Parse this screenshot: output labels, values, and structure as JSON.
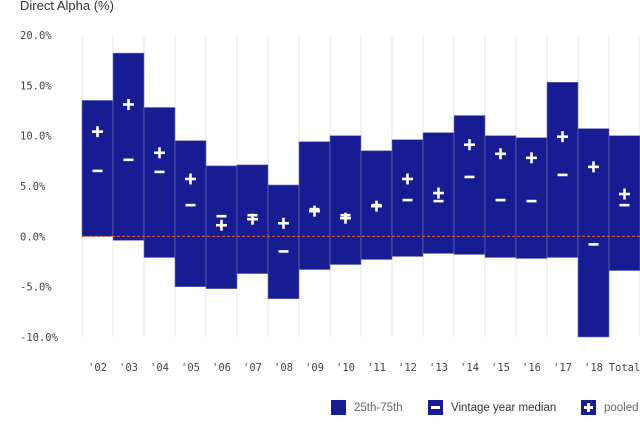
{
  "chart_data": {
    "type": "bar",
    "title": "Direct Alpha (%)",
    "xlabel": "",
    "ylabel": "Direct Alpha (%)",
    "ylim": [
      -10,
      20
    ],
    "yticks": [
      "20.0%",
      "15.0%",
      "10.0%",
      "5.0%",
      "0.0%",
      "-5.0%",
      "-10.0%"
    ],
    "ytick_values": [
      20,
      15,
      10,
      5,
      0,
      -5,
      -10
    ],
    "grid": true,
    "reference_line": 0,
    "categories": [
      "'02",
      "'03",
      "'04",
      "'05",
      "'06",
      "'07",
      "'08",
      "'09",
      "'10",
      "'11",
      "'12",
      "'13",
      "'14",
      "'15",
      "'16",
      "'17",
      "'18",
      "Total"
    ],
    "series": [
      {
        "name": "25th-75th",
        "type": "range",
        "low": [
          0.0,
          -0.4,
          -2.1,
          -5.0,
          -5.2,
          -3.7,
          -6.2,
          -3.3,
          -2.8,
          -2.3,
          -2.0,
          -1.7,
          -1.8,
          -2.1,
          -2.2,
          -2.1,
          -10.0,
          -3.4
        ],
        "high": [
          13.5,
          18.2,
          12.8,
          9.5,
          7.0,
          7.1,
          5.1,
          9.4,
          10.0,
          8.5,
          9.6,
          10.3,
          12.0,
          10.0,
          9.8,
          15.3,
          10.7,
          10.0
        ]
      },
      {
        "name": "Vintage year median",
        "type": "marker",
        "values": [
          6.5,
          7.6,
          6.4,
          3.1,
          2.0,
          2.1,
          -1.5,
          2.7,
          2.1,
          3.1,
          3.6,
          3.5,
          5.9,
          3.6,
          3.5,
          6.1,
          -0.8,
          3.1
        ]
      },
      {
        "name": "pooled",
        "type": "marker",
        "values": [
          10.4,
          13.1,
          8.3,
          5.7,
          1.1,
          1.7,
          1.3,
          2.5,
          1.8,
          3.0,
          5.7,
          4.3,
          9.1,
          8.2,
          7.8,
          9.9,
          6.9,
          4.2
        ]
      }
    ],
    "legend_position": "bottom-right",
    "colors": {
      "bar": "#181c92",
      "marker": "#ffffff",
      "zero_line": "#e8552a",
      "grid": "#e6e6e6"
    }
  }
}
